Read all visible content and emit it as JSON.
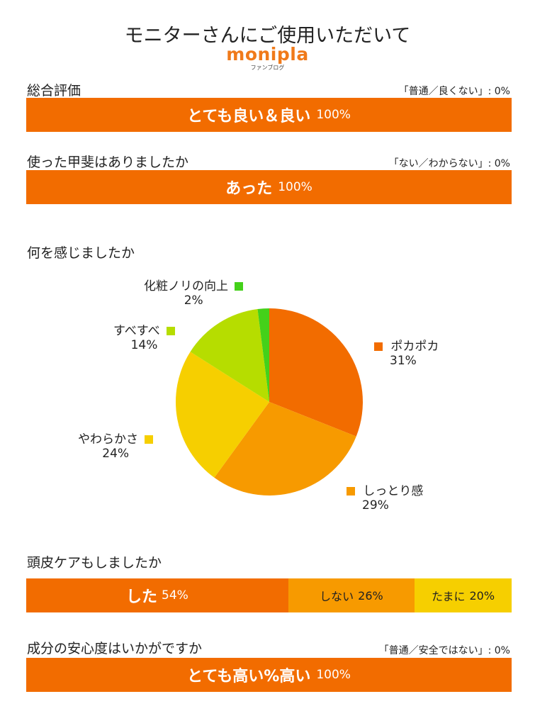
{
  "header": {
    "title": "モニターさんにご使用いただいて",
    "logo_text": "monipla",
    "logo_sub": "ファンブログ"
  },
  "colors": {
    "primary_orange": "#f26c00",
    "light_orange": "#f79a00",
    "yellow": "#f6cf00",
    "lime": "#b6dd00",
    "green": "#44d11a"
  },
  "q1": {
    "label": "総合評価",
    "note": "「普通／良くない」: 0%",
    "answer": "とても良い＆良い",
    "pct": "100%"
  },
  "q2": {
    "label": "使った甲斐はありましたか",
    "note": "「ない／わからない」: 0%",
    "answer": "あった",
    "pct": "100%"
  },
  "q3": {
    "label": "何を感じましたか"
  },
  "q4": {
    "label": "頭皮ケアもしましたか"
  },
  "q5": {
    "label": "成分の安心度はいかがですか",
    "note": "「普通／安全ではない」: 0%",
    "answer": "とても高い%高い",
    "pct": "100%"
  },
  "chart_data": [
    {
      "type": "bar",
      "title": "総合評価",
      "categories": [
        "とても良い＆良い",
        "普通／良くない"
      ],
      "values": [
        100,
        0
      ],
      "unit": "%"
    },
    {
      "type": "bar",
      "title": "使った甲斐はありましたか",
      "categories": [
        "あった",
        "ない／わからない"
      ],
      "values": [
        100,
        0
      ],
      "unit": "%"
    },
    {
      "type": "pie",
      "title": "何を感じましたか",
      "slices": [
        {
          "label": "ポカポカ",
          "value": 31,
          "pct_text": "31%",
          "color": "#f26c00"
        },
        {
          "label": "しっとり感",
          "value": 29,
          "pct_text": "29%",
          "color": "#f79a00"
        },
        {
          "label": "やわらかさ",
          "value": 24,
          "pct_text": "24%",
          "color": "#f6cf00"
        },
        {
          "label": "すべすべ",
          "value": 14,
          "pct_text": "14%",
          "color": "#b6dd00"
        },
        {
          "label": "化粧ノリの向上",
          "value": 2,
          "pct_text": "2%",
          "color": "#44d11a"
        }
      ]
    },
    {
      "type": "bar",
      "title": "頭皮ケアもしましたか",
      "stacked": true,
      "segments": [
        {
          "label": "した",
          "value": 54,
          "pct_text": "54%",
          "color": "#f26c00"
        },
        {
          "label": "しない",
          "value": 26,
          "pct_text": "26%",
          "color": "#f79a00"
        },
        {
          "label": "たまに",
          "value": 20,
          "pct_text": "20%",
          "color": "#f6cf00"
        }
      ]
    },
    {
      "type": "bar",
      "title": "成分の安心度はいかがですか",
      "categories": [
        "とても高い%高い",
        "普通／安全ではない"
      ],
      "values": [
        100,
        0
      ],
      "unit": "%"
    }
  ]
}
